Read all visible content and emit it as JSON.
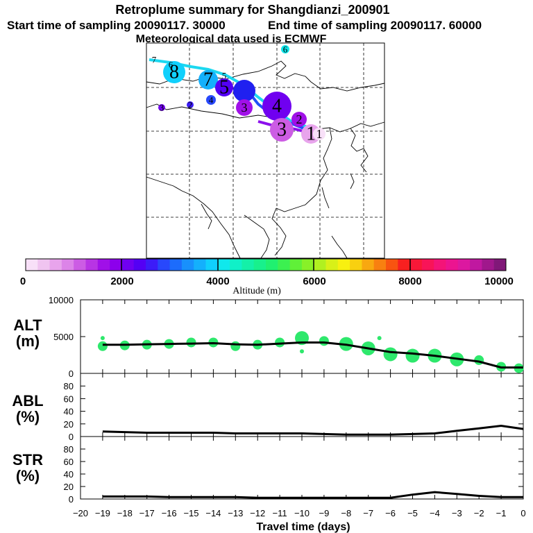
{
  "header": {
    "title": "Retroplume summary for Shangdianzi_200901",
    "start_label": "Start time of sampling 20090117. 30000",
    "end_label": "End time of sampling 20090117. 60000",
    "met_label": "Meteorological data used is ECMWF"
  },
  "colorbar": {
    "label": "Altitude (m)",
    "ticks": [
      "0",
      "2000",
      "4000",
      "6000",
      "8000",
      "10000"
    ],
    "colors": [
      "#f8e0f8",
      "#f0c4f0",
      "#e8a4ec",
      "#dc84e8",
      "#cc5ce4",
      "#b834e4",
      "#a010e8",
      "#8c00ec",
      "#7000f0",
      "#5400f4",
      "#3c1cf8",
      "#2848fc",
      "#1c6cfc",
      "#1890fc",
      "#14b0fc",
      "#10d0fc",
      "#10e8ec",
      "#10f0c8",
      "#14f0a8",
      "#18f08c",
      "#20f070",
      "#3cf050",
      "#60f038",
      "#88f028",
      "#b0f020",
      "#d8f018",
      "#f8f010",
      "#f8d010",
      "#f8a810",
      "#f88010",
      "#f85410",
      "#f82020",
      "#f81838",
      "#f81458",
      "#f41478",
      "#ec1490",
      "#dc18a0",
      "#c018a0",
      "#a0188c",
      "#801878"
    ]
  },
  "map": {
    "clusters": [
      {
        "label": "8",
        "alt": 3900,
        "size": 3
      },
      {
        "label": "7",
        "alt": 3600,
        "size": 3
      },
      {
        "label": "6",
        "alt": 3400,
        "size": 1
      },
      {
        "label": "5",
        "alt": 3000,
        "size": 2
      },
      {
        "label": "5",
        "alt": 2400,
        "size": 3
      },
      {
        "label": "4",
        "alt": 2100,
        "size": 4
      },
      {
        "label": "4",
        "alt": 2800,
        "size": 1
      },
      {
        "label": "3",
        "alt": 1600,
        "size": 3
      },
      {
        "label": "3",
        "alt": 1200,
        "size": 2
      },
      {
        "label": "2",
        "alt": 1500,
        "size": 2
      },
      {
        "label": "1",
        "alt": 500,
        "size": 3
      },
      {
        "label": "1",
        "alt": 200,
        "size": 2
      },
      {
        "label": "6",
        "alt": 4200,
        "size": 1
      },
      {
        "label": "7",
        "alt": 3800,
        "size": 1
      },
      {
        "label": "2",
        "alt": 2700,
        "size": 1
      },
      {
        "label": "3",
        "alt": 2200,
        "size": 1
      }
    ]
  },
  "panels": {
    "alt_title": "ALT",
    "alt_unit": "(m)",
    "abl_title": "ABL",
    "abl_unit": "(%)",
    "str_title": "STR",
    "str_unit": "(%)",
    "xlabel": "Travel time (days)"
  },
  "chart_data": {
    "type": "line",
    "xlabel": "Travel time (days)",
    "x_ticks": [
      "-20",
      "-19",
      "-18",
      "-17",
      "-16",
      "-15",
      "-14",
      "-13",
      "-12",
      "-11",
      "-10",
      "-9",
      "-8",
      "-7",
      "-6",
      "-5",
      "-4",
      "-3",
      "-2",
      "-1",
      "0"
    ],
    "xlim": [
      -20,
      0
    ],
    "series": [
      {
        "name": "ALT",
        "ylabel": "ALT (m)",
        "ylim": [
          0,
          10000
        ],
        "y_ticks": [
          "0",
          "5000",
          "10000"
        ],
        "x": [
          -19,
          -18,
          -17,
          -16,
          -15,
          -14,
          -13,
          -12,
          -11,
          -10,
          -9,
          -8,
          -7,
          -6,
          -5,
          -4,
          -3,
          -2,
          -1,
          0
        ],
        "values": [
          3900,
          3900,
          3950,
          4000,
          4050,
          4100,
          3950,
          3900,
          4050,
          4200,
          4200,
          3900,
          3400,
          2900,
          2700,
          2400,
          2000,
          1600,
          800,
          800
        ]
      },
      {
        "name": "ABL",
        "ylabel": "ABL (%)",
        "ylim": [
          0,
          100
        ],
        "y_ticks": [
          "0",
          "20",
          "40",
          "60",
          "80"
        ],
        "x": [
          -19,
          -18,
          -17,
          -16,
          -15,
          -14,
          -13,
          -12,
          -11,
          -10,
          -9,
          -8,
          -7,
          -6,
          -5,
          -4,
          -3,
          -2,
          -1,
          0
        ],
        "values": [
          8,
          7,
          6,
          6,
          6,
          6,
          5,
          5,
          5,
          5,
          4,
          3,
          3,
          3,
          4,
          5,
          9,
          13,
          17,
          12
        ]
      },
      {
        "name": "STR",
        "ylabel": "STR (%)",
        "ylim": [
          0,
          100
        ],
        "y_ticks": [
          "0",
          "20",
          "40",
          "60",
          "80"
        ],
        "x": [
          -19,
          -18,
          -17,
          -16,
          -15,
          -14,
          -13,
          -12,
          -11,
          -10,
          -9,
          -8,
          -7,
          -6,
          -5,
          -4,
          -3,
          -2,
          -1,
          0
        ],
        "values": [
          4,
          4,
          4,
          3,
          3,
          3,
          3,
          2,
          2,
          2,
          2,
          2,
          2,
          2,
          7,
          11,
          8,
          5,
          3,
          3
        ]
      }
    ],
    "alt_scatter": {
      "x": [
        -19.0,
        -19.0,
        -18.0,
        -17.0,
        -16.0,
        -15.0,
        -14.0,
        -13.0,
        -12.0,
        -11.0,
        -10.0,
        -10.0,
        -9.0,
        -8.0,
        -7.0,
        -6.5,
        -6.0,
        -5.0,
        -4.0,
        -3.0,
        -2.0,
        -1.0,
        -0.2
      ],
      "values": [
        3700,
        4800,
        3800,
        3900,
        4000,
        4200,
        4200,
        3700,
        3900,
        4200,
        4800,
        3000,
        4400,
        4000,
        3400,
        4800,
        2600,
        2400,
        2400,
        1900,
        1800,
        900,
        700
      ],
      "sizes": [
        2,
        1,
        2,
        2,
        2,
        2,
        2,
        2,
        2,
        2,
        3,
        1,
        2,
        3,
        3,
        1,
        3,
        3,
        3,
        3,
        2,
        2,
        2
      ]
    }
  }
}
